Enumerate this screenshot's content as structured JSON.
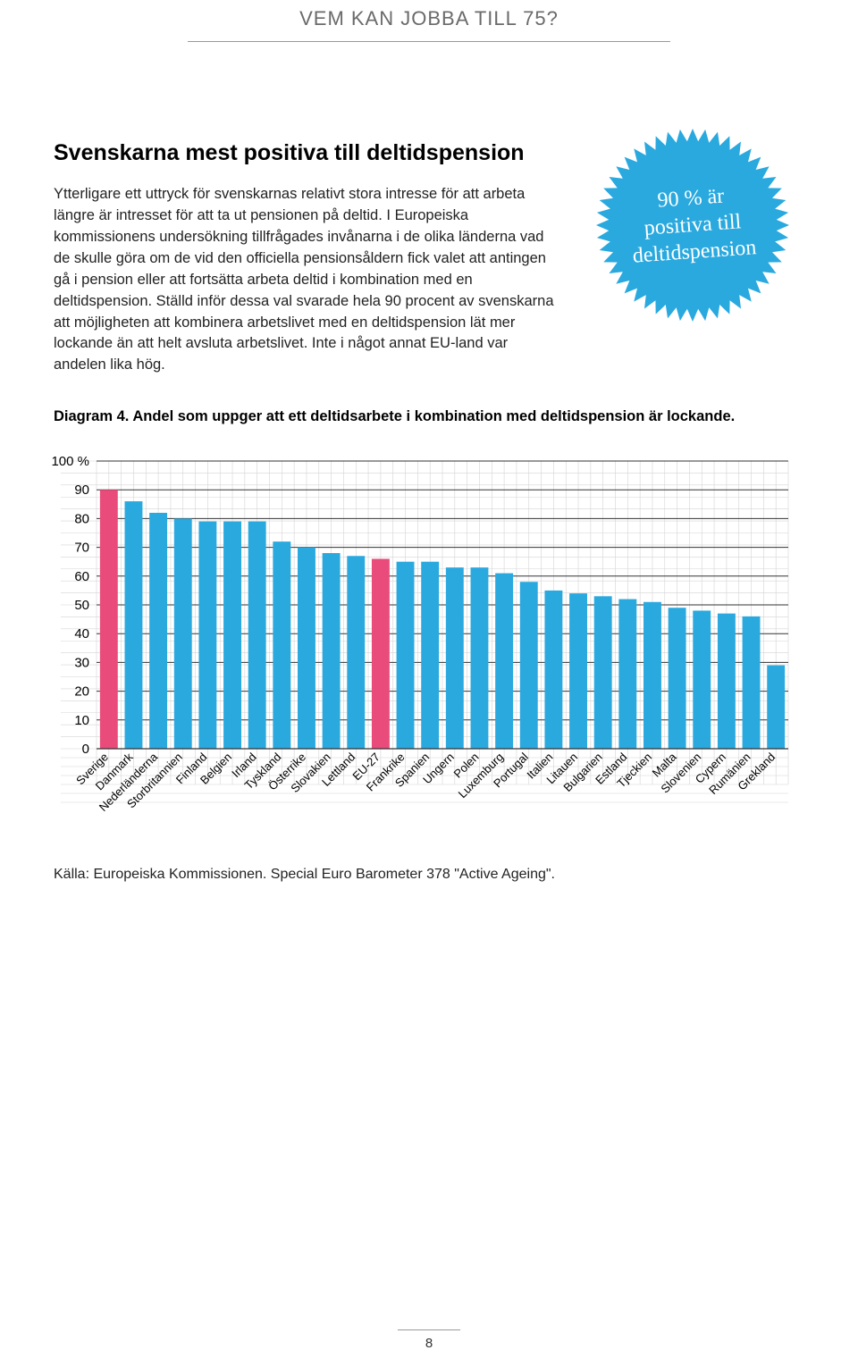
{
  "header": {
    "title": "VEM KAN JOBBA TILL 75?"
  },
  "section": {
    "heading": "Svenskarna mest positiva till deltidspension",
    "body": "Ytterligare ett uttryck för svenskarnas relativt stora intresse för att arbeta längre är intresset för att ta ut pensionen på deltid. I Europeiska kommissionens undersökning tillfrågades invånarna i de olika länderna vad de skulle göra om de vid den officiella pensionsåldern fick valet att antingen gå i pension eller att fortsätta arbeta deltid i kombination med en deltidspension. Ställd inför dessa val svarade hela 90 procent av svenskarna att möjligheten att kombinera arbetslivet med en deltidspension lät mer lockande än att helt avsluta arbetslivet. Inte i något annat EU-land var andelen lika hög."
  },
  "badge": {
    "line1": "90 % är",
    "line2": "positiva till",
    "line3": "deltidspension",
    "fill": "#2aa9df"
  },
  "diagram": {
    "caption": "Diagram 4. Andel som uppger att ett deltidsarbete i kombination med deltidspension är lockande.",
    "type": "bar",
    "ylim": [
      0,
      100
    ],
    "ytick_labels": [
      "0",
      "10",
      "20",
      "30",
      "40",
      "50",
      "60",
      "70",
      "80",
      "90",
      "100 %"
    ],
    "ytick_values": [
      0,
      10,
      20,
      30,
      40,
      50,
      60,
      70,
      80,
      90,
      100
    ],
    "bar_color": "#2aa9df",
    "highlight_color": "#e94b7a",
    "grid_color": "#d4d4d4",
    "major_grid_color": "#333333",
    "background": "#ffffff",
    "categories": [
      "Sverige",
      "Danmark",
      "Nederländerna",
      "Storbritannien",
      "Finland",
      "Belgien",
      "Irland",
      "Tyskland",
      "Österrike",
      "Slovakien",
      "Lettland",
      "EU-27",
      "Frankrike",
      "Spanien",
      "Ungern",
      "Polen",
      "Luxemburg",
      "Portugal",
      "Italien",
      "Litauen",
      "Bulgarien",
      "Estland",
      "Tjeckien",
      "Malta",
      "Slovenien",
      "Cypern",
      "Rumänien",
      "Grekland"
    ],
    "values": [
      90,
      86,
      82,
      80,
      79,
      79,
      79,
      72,
      70,
      68,
      67,
      66,
      65,
      65,
      63,
      63,
      61,
      58,
      55,
      54,
      53,
      52,
      51,
      49,
      48,
      47,
      46,
      29
    ],
    "highlight_indices": [
      0,
      11
    ]
  },
  "source": "Källa: Europeiska Kommissionen. Special Euro Barometer 378 \"Active Ageing\".",
  "page": "8"
}
